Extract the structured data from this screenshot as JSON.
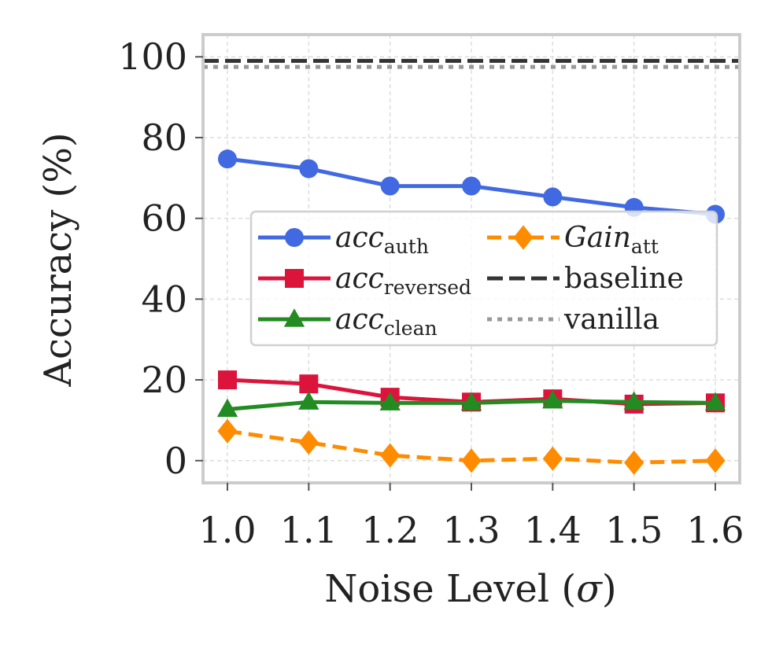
{
  "chart_data": {
    "type": "line",
    "title": "",
    "xlabel": "Noise Level (",
    "xlabel_symbol": "σ",
    "xlabel_close": ")",
    "ylabel": "Accuracy (%)",
    "x": [
      1.0,
      1.1,
      1.2,
      1.3,
      1.4,
      1.5,
      1.6
    ],
    "x_tick_labels": [
      "1.0",
      "1.1",
      "1.2",
      "1.3",
      "1.4",
      "1.5",
      "1.6"
    ],
    "y_ticks": [
      0,
      20,
      40,
      60,
      80,
      100
    ],
    "y_tick_labels": [
      "0",
      "20",
      "40",
      "60",
      "80",
      "100"
    ],
    "xlim": [
      0.97,
      1.63
    ],
    "ylim": [
      -5.5,
      105.5
    ],
    "grid": true,
    "legend_position": "center-right",
    "series": [
      {
        "key": "auth",
        "name_main": "acc",
        "name_sub": "auth",
        "color": "#4169e1",
        "marker": "circle",
        "style": "solid",
        "values": [
          74.7,
          72.3,
          68.0,
          68.0,
          65.3,
          62.7,
          61.0
        ]
      },
      {
        "key": "reversed",
        "name_main": "acc",
        "name_sub": "reversed",
        "color": "#dc143c",
        "marker": "square",
        "style": "solid",
        "values": [
          20.0,
          19.0,
          15.7,
          14.5,
          15.3,
          14.0,
          14.3
        ]
      },
      {
        "key": "clean",
        "name_main": "acc",
        "name_sub": "clean",
        "color": "#228b22",
        "marker": "triangle",
        "style": "solid",
        "values": [
          12.7,
          14.5,
          14.3,
          14.3,
          14.8,
          14.5,
          14.3
        ]
      },
      {
        "key": "gain",
        "name_main": "Gain",
        "name_sub": "att",
        "color": "#ff8c00",
        "marker": "diamond",
        "style": "dashed",
        "values": [
          7.3,
          4.5,
          1.3,
          0.0,
          0.5,
          -0.5,
          0.0
        ]
      }
    ],
    "reference_lines": [
      {
        "key": "baseline",
        "name": "baseline",
        "value": 99.0,
        "color": "#333333",
        "style": "dashed"
      },
      {
        "key": "vanilla",
        "name": "vanilla",
        "value": 97.5,
        "color": "#999999",
        "style": "dotted"
      }
    ]
  }
}
